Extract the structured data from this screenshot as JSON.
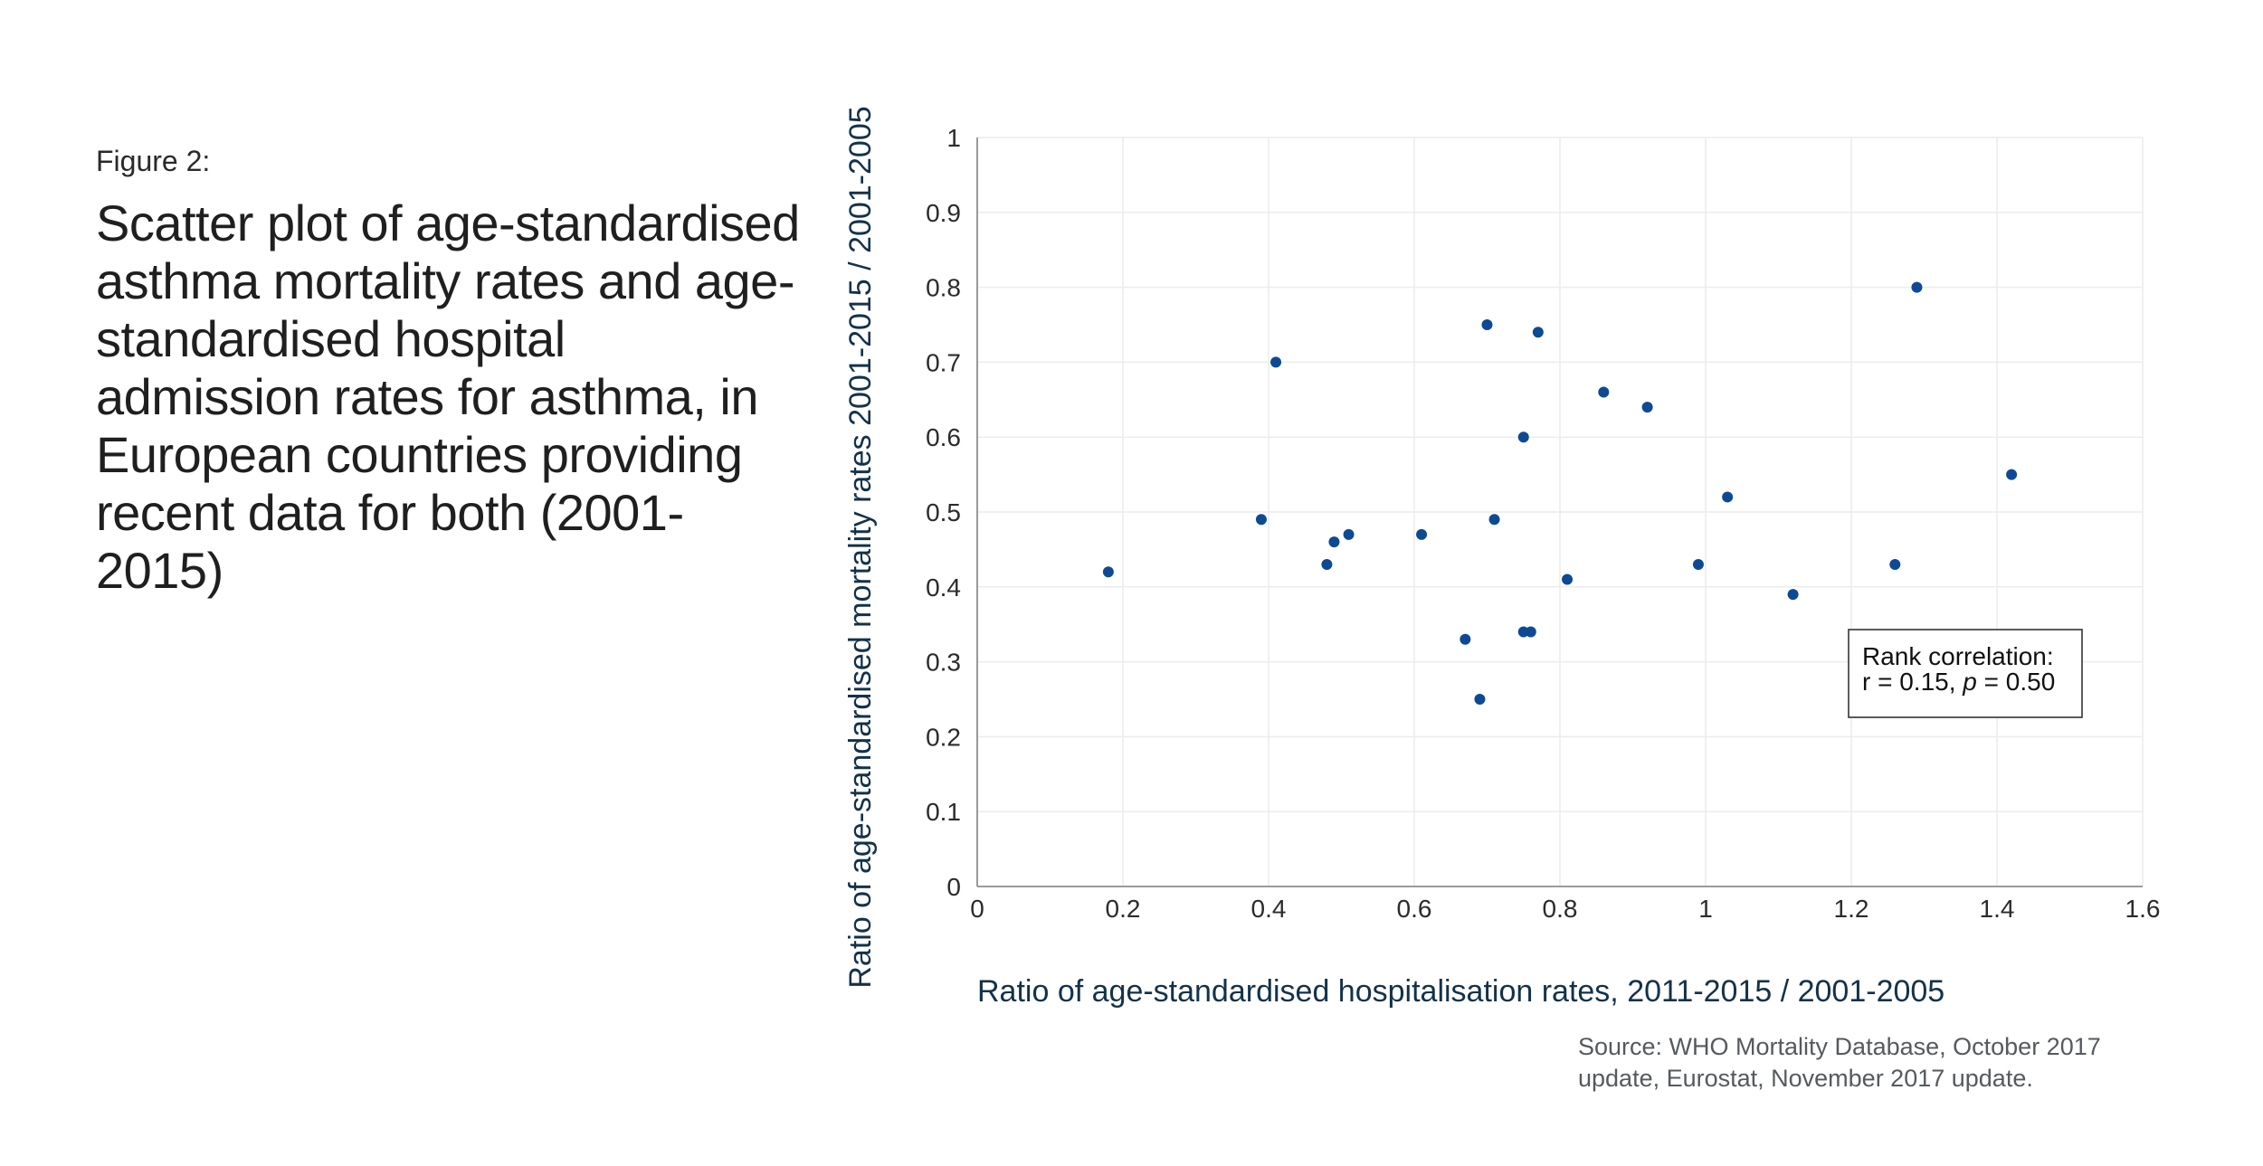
{
  "figure_label": "Figure 2:",
  "figure_title": "Scatter plot of age-standardised asthma mortality rates and age-standardised hospital admission rates for asthma, in European countries providing recent data for both (2001-2015)",
  "source": "Source: WHO Mortality Database, October 2017 update, Eurostat, November 2017 update.",
  "colors": {
    "points": "#0e4a94",
    "grid": "#ececec",
    "axis": "#9a9a9a"
  },
  "chart_data": {
    "type": "scatter",
    "xlabel": "Ratio of age-standardised hospitalisation rates, 2011-2015 / 2001-2005",
    "ylabel": "Ratio of age-standardised mortality rates 2001-2015 / 2001-2005",
    "xlim": [
      0,
      1.6
    ],
    "ylim": [
      0,
      1
    ],
    "x_ticks": [
      "0",
      "0.2",
      "0.4",
      "0.6",
      "0.8",
      "1",
      "1.2",
      "1.4",
      "1.6"
    ],
    "y_ticks": [
      "0",
      "0.1",
      "0.2",
      "0.3",
      "0.4",
      "0.5",
      "0.6",
      "0.7",
      "0.8",
      "0.9",
      "1"
    ],
    "grid": true,
    "annotation": {
      "line1": "Rank correlation:",
      "line2_prefix": "r = 0.15, ",
      "line2_italic": "p",
      "line2_suffix": " = 0.50",
      "placement": "lower-right"
    },
    "points": [
      {
        "x": 0.18,
        "y": 0.42
      },
      {
        "x": 0.39,
        "y": 0.49
      },
      {
        "x": 0.41,
        "y": 0.7
      },
      {
        "x": 0.48,
        "y": 0.43
      },
      {
        "x": 0.49,
        "y": 0.46
      },
      {
        "x": 0.51,
        "y": 0.47
      },
      {
        "x": 0.61,
        "y": 0.47
      },
      {
        "x": 0.67,
        "y": 0.33
      },
      {
        "x": 0.69,
        "y": 0.25
      },
      {
        "x": 0.7,
        "y": 0.75
      },
      {
        "x": 0.71,
        "y": 0.49
      },
      {
        "x": 0.75,
        "y": 0.6
      },
      {
        "x": 0.75,
        "y": 0.34
      },
      {
        "x": 0.76,
        "y": 0.34
      },
      {
        "x": 0.77,
        "y": 0.74
      },
      {
        "x": 0.81,
        "y": 0.41
      },
      {
        "x": 0.86,
        "y": 0.66
      },
      {
        "x": 0.92,
        "y": 0.64
      },
      {
        "x": 0.99,
        "y": 0.43
      },
      {
        "x": 1.03,
        "y": 0.52
      },
      {
        "x": 1.12,
        "y": 0.39
      },
      {
        "x": 1.26,
        "y": 0.43
      },
      {
        "x": 1.29,
        "y": 0.8
      },
      {
        "x": 1.42,
        "y": 0.55
      }
    ]
  }
}
